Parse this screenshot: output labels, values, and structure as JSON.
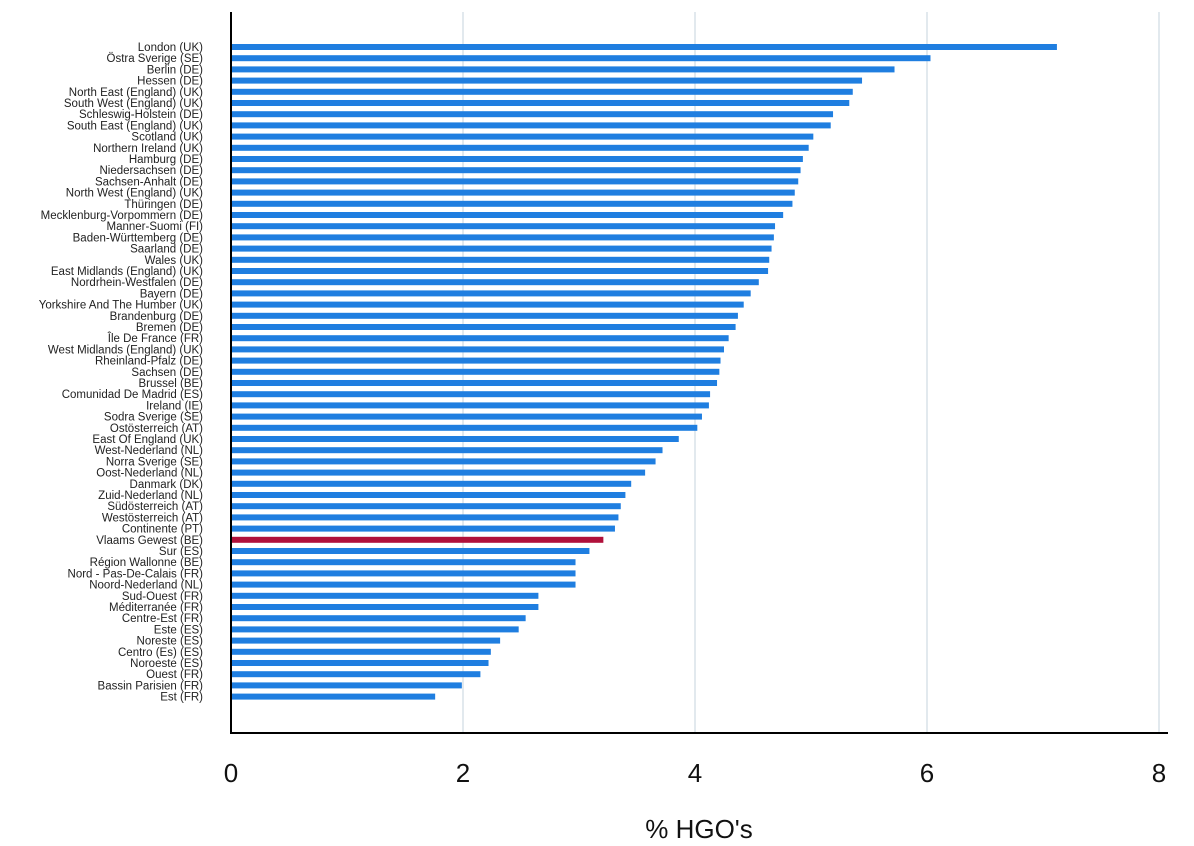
{
  "chart_data": {
    "type": "bar",
    "orientation": "horizontal",
    "xlabel": "% HGO's",
    "ylabel": "",
    "title": "",
    "xlim": [
      0,
      8.2
    ],
    "xticks": [
      0,
      2,
      4,
      6,
      8
    ],
    "grid": "vertical",
    "colors": {
      "default": "#1f7ee0",
      "highlight": "#b0103a",
      "grid": "#e2e9ee"
    },
    "highlight_category": "Vlaams Gewest (BE)",
    "categories": [
      "London (UK)",
      "Östra Sverige (SE)",
      "Berlin (DE)",
      "Hessen (DE)",
      "North East (England) (UK)",
      "South West (England) (UK)",
      "Schleswig-Holstein (DE)",
      "South East (England) (UK)",
      "Scotland (UK)",
      "Northern Ireland (UK)",
      "Hamburg (DE)",
      "Niedersachsen (DE)",
      "Sachsen-Anhalt (DE)",
      "North West (England) (UK)",
      "Thüringen (DE)",
      "Mecklenburg-Vorpommern (DE)",
      "Manner-Suomi (FI)",
      "Baden-Württemberg (DE)",
      "Saarland (DE)",
      "Wales (UK)",
      "East Midlands (England) (UK)",
      "Nordrhein-Westfalen (DE)",
      "Bayern (DE)",
      "Yorkshire And The Humber (UK)",
      "Brandenburg (DE)",
      "Bremen (DE)",
      "Île De France (FR)",
      "West Midlands (England) (UK)",
      "Rheinland-Pfalz (DE)",
      "Sachsen (DE)",
      "Brussel (BE)",
      "Comunidad De Madrid (ES)",
      "Ireland (IE)",
      "Sodra Sverige (SE)",
      "Ostösterreich (AT)",
      "East Of England (UK)",
      "West-Nederland (NL)",
      "Norra Sverige (SE)",
      "Oost-Nederland (NL)",
      "Danmark (DK)",
      "Zuid-Nederland (NL)",
      "Südösterreich (AT)",
      "Westösterreich (AT)",
      "Continente (PT)",
      "Vlaams Gewest (BE)",
      "Sur (ES)",
      "Région Wallonne (BE)",
      "Nord - Pas-De-Calais (FR)",
      "Noord-Nederland (NL)",
      "Sud-Ouest (FR)",
      "Méditerranée (FR)",
      "Centre-Est (FR)",
      "Este (ES)",
      "Noreste (ES)",
      "Centro (Es) (ES)",
      "Noroeste (ES)",
      "Ouest (FR)",
      "Bassin Parisien (FR)",
      "Est (FR)"
    ],
    "values": [
      7.12,
      6.03,
      5.72,
      5.44,
      5.36,
      5.33,
      5.19,
      5.17,
      5.02,
      4.98,
      4.93,
      4.91,
      4.89,
      4.86,
      4.84,
      4.76,
      4.69,
      4.68,
      4.66,
      4.64,
      4.63,
      4.55,
      4.48,
      4.42,
      4.37,
      4.35,
      4.29,
      4.25,
      4.22,
      4.21,
      4.19,
      4.13,
      4.12,
      4.06,
      4.02,
      3.86,
      3.72,
      3.66,
      3.57,
      3.45,
      3.4,
      3.36,
      3.34,
      3.31,
      3.21,
      3.09,
      2.97,
      2.97,
      2.97,
      2.65,
      2.65,
      2.54,
      2.48,
      2.32,
      2.24,
      2.22,
      2.15,
      1.99,
      1.76
    ]
  }
}
